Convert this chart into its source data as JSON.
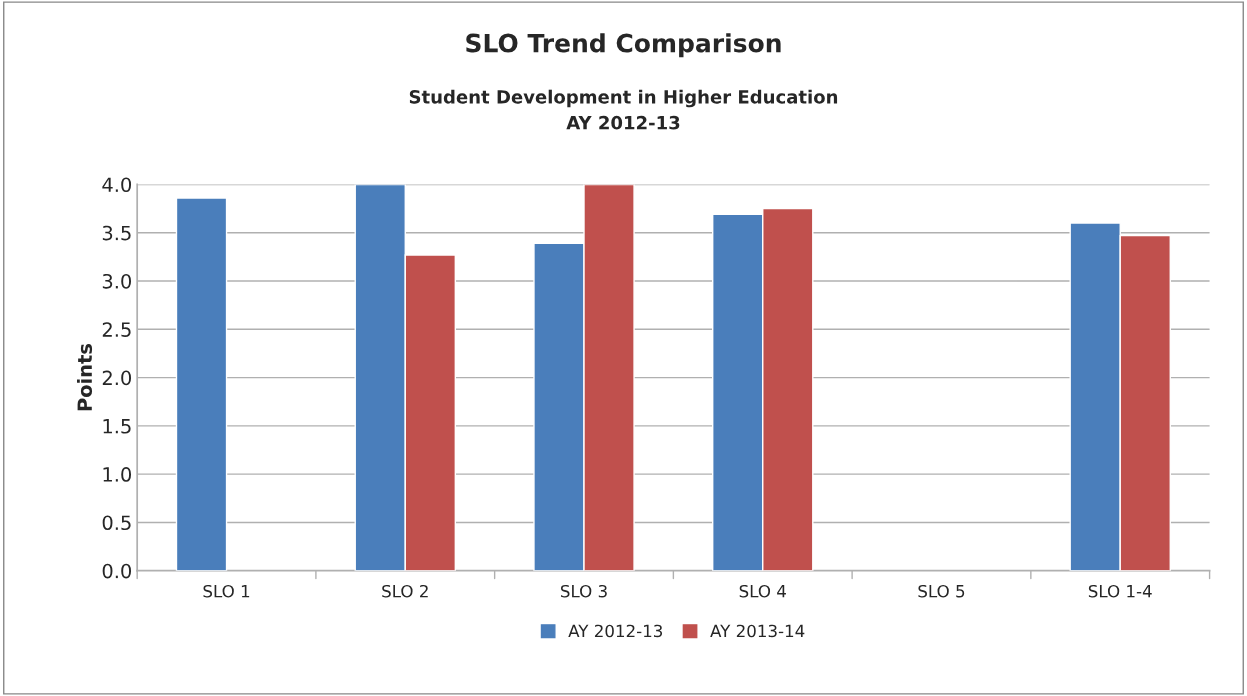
{
  "chart_data": {
    "type": "bar",
    "title": "SLO Trend Comparison",
    "subtitle": "Student Development in Higher Education\nAY 2012-13",
    "ylabel": "Points",
    "categories": [
      "SLO 1",
      "SLO 2",
      "SLO 3",
      "SLO 4",
      "SLO 5",
      "SLO 1-4"
    ],
    "series": [
      {
        "name": "AY 2012-13",
        "color": "#4a7ebb",
        "values": [
          3.86,
          4.0,
          3.39,
          3.69,
          null,
          3.6
        ]
      },
      {
        "name": "AY 2013-14",
        "color": "#c0504d",
        "values": [
          null,
          3.27,
          4.0,
          3.75,
          null,
          3.47
        ]
      }
    ],
    "ylim": [
      0,
      4
    ],
    "yticks": [
      {
        "value": 0,
        "label": "0.0"
      },
      {
        "value": 0.5,
        "label": "0.5"
      },
      {
        "value": 1,
        "label": "1.0"
      },
      {
        "value": 1.5,
        "label": "1.5"
      },
      {
        "value": 2,
        "label": "2.0"
      },
      {
        "value": 2.5,
        "label": "2.5"
      },
      {
        "value": 3,
        "label": "3.0"
      },
      {
        "value": 3.5,
        "label": "3.5"
      },
      {
        "value": 4,
        "label": "4.0"
      }
    ],
    "grid": "y",
    "legend": "bottom"
  }
}
